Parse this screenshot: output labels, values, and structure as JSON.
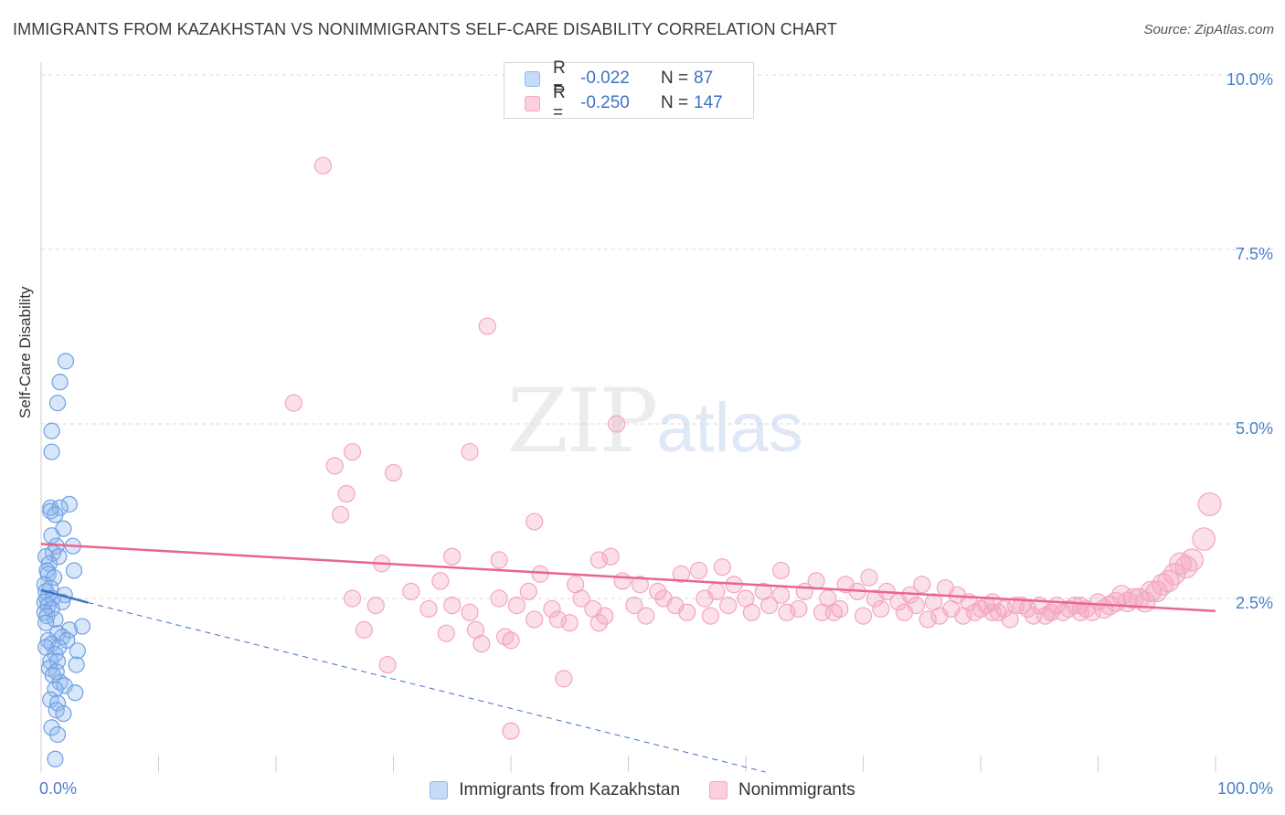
{
  "title": "IMMIGRANTS FROM KAZAKHSTAN VS NONIMMIGRANTS SELF-CARE DISABILITY CORRELATION CHART",
  "source": "Source: ZipAtlas.com",
  "watermark": {
    "zip": "ZIP",
    "atlas": "atlas"
  },
  "colors": {
    "blue": "#8fb8ee",
    "blue_line": "#3d72c4",
    "pink": "#f3a6bf",
    "pink_line": "#e8668e",
    "axis_text": "#4a7fc8",
    "grid": "#d9d9d9"
  },
  "legend_top": [
    {
      "r_label": "R =",
      "r": "-0.022",
      "n_label": "N =",
      "n": "87",
      "color": "blue"
    },
    {
      "r_label": "R =",
      "r": "-0.250",
      "n_label": "N =",
      "n": "147",
      "color": "pink"
    }
  ],
  "legend_bottom": [
    {
      "label": "Immigrants from Kazakhstan",
      "color": "blue"
    },
    {
      "label": "Nonimmigrants",
      "color": "pink"
    }
  ],
  "chart_data": {
    "type": "scatter",
    "title": "IMMIGRANTS FROM KAZAKHSTAN VS NONIMMIGRANTS SELF-CARE DISABILITY CORRELATION CHART",
    "xlabel": "",
    "ylabel": "Self-Care Disability",
    "xlim": [
      0,
      100
    ],
    "ylim": [
      0,
      10.5
    ],
    "x_tick_labels": [
      {
        "value": 0,
        "label": "0.0%"
      },
      {
        "value": 100,
        "label": "100.0%"
      }
    ],
    "x_minor_ticks": [
      0,
      10,
      20,
      30,
      40,
      50,
      60,
      70,
      80,
      90,
      100
    ],
    "y_tick_labels": [
      {
        "value": 2.5,
        "label": "2.5%"
      },
      {
        "value": 5.0,
        "label": "5.0%"
      },
      {
        "value": 7.5,
        "label": "7.5%"
      },
      {
        "value": 10.0,
        "label": "10.0%"
      }
    ],
    "series": [
      {
        "name": "Immigrants from Kazakhstan",
        "color": "blue",
        "trend": {
          "x": [
            0,
            4
          ],
          "y": [
            2.62,
            2.44
          ]
        },
        "trend_extended": {
          "x": [
            4,
            100
          ],
          "y": [
            2.44,
            -1.6
          ]
        },
        "points": [
          [
            2.1,
            5.9
          ],
          [
            1.6,
            5.6
          ],
          [
            1.4,
            5.3
          ],
          [
            0.9,
            4.9
          ],
          [
            0.9,
            4.6
          ],
          [
            2.4,
            3.85
          ],
          [
            0.8,
            3.8
          ],
          [
            1.6,
            3.8
          ],
          [
            0.8,
            3.75
          ],
          [
            1.2,
            3.7
          ],
          [
            1.9,
            3.5
          ],
          [
            0.9,
            3.4
          ],
          [
            1.3,
            3.25
          ],
          [
            2.7,
            3.25
          ],
          [
            1.0,
            3.15
          ],
          [
            0.4,
            3.1
          ],
          [
            1.5,
            3.1
          ],
          [
            0.7,
            3.0
          ],
          [
            0.5,
            2.9
          ],
          [
            2.8,
            2.9
          ],
          [
            0.6,
            2.85
          ],
          [
            1.1,
            2.8
          ],
          [
            0.3,
            2.7
          ],
          [
            0.8,
            2.65
          ],
          [
            0.4,
            2.6
          ],
          [
            2.0,
            2.55
          ],
          [
            0.5,
            2.5
          ],
          [
            1.0,
            2.5
          ],
          [
            0.3,
            2.45
          ],
          [
            1.8,
            2.45
          ],
          [
            0.6,
            2.4
          ],
          [
            0.9,
            2.35
          ],
          [
            0.3,
            2.3
          ],
          [
            0.5,
            2.25
          ],
          [
            1.2,
            2.2
          ],
          [
            0.4,
            2.15
          ],
          [
            3.5,
            2.1
          ],
          [
            2.4,
            2.05
          ],
          [
            1.4,
            2.0
          ],
          [
            1.8,
            1.95
          ],
          [
            0.6,
            1.9
          ],
          [
            2.2,
            1.9
          ],
          [
            0.9,
            1.85
          ],
          [
            1.5,
            1.8
          ],
          [
            0.4,
            1.8
          ],
          [
            3.1,
            1.75
          ],
          [
            1.2,
            1.7
          ],
          [
            0.8,
            1.6
          ],
          [
            1.4,
            1.6
          ],
          [
            3.0,
            1.55
          ],
          [
            0.7,
            1.5
          ],
          [
            1.3,
            1.45
          ],
          [
            1.0,
            1.4
          ],
          [
            1.6,
            1.3
          ],
          [
            2.0,
            1.25
          ],
          [
            1.2,
            1.2
          ],
          [
            2.9,
            1.15
          ],
          [
            0.8,
            1.05
          ],
          [
            1.4,
            1.0
          ],
          [
            1.3,
            0.9
          ],
          [
            1.9,
            0.85
          ],
          [
            0.9,
            0.65
          ],
          [
            1.4,
            0.55
          ],
          [
            1.2,
            0.2
          ]
        ]
      },
      {
        "name": "Nonimmigrants",
        "color": "pink",
        "trend": {
          "x": [
            0,
            100
          ],
          "y": [
            3.28,
            2.32
          ]
        },
        "points": [
          [
            24.0,
            8.7
          ],
          [
            38.0,
            6.4
          ],
          [
            21.5,
            5.3
          ],
          [
            49.0,
            5.0
          ],
          [
            26.5,
            4.6
          ],
          [
            36.5,
            4.6
          ],
          [
            25.0,
            4.4
          ],
          [
            30.0,
            4.3
          ],
          [
            26.0,
            4.0
          ],
          [
            25.5,
            3.7
          ],
          [
            42.0,
            3.6
          ],
          [
            35.0,
            3.1
          ],
          [
            48.5,
            3.1
          ],
          [
            39.0,
            3.05
          ],
          [
            47.5,
            3.05
          ],
          [
            29.0,
            3.0
          ],
          [
            58.0,
            2.95
          ],
          [
            42.5,
            2.85
          ],
          [
            54.5,
            2.85
          ],
          [
            56.0,
            2.9
          ],
          [
            63.0,
            2.9
          ],
          [
            70.5,
            2.8
          ],
          [
            34.0,
            2.75
          ],
          [
            45.5,
            2.7
          ],
          [
            49.5,
            2.75
          ],
          [
            51.0,
            2.7
          ],
          [
            59.0,
            2.7
          ],
          [
            66.0,
            2.75
          ],
          [
            68.5,
            2.7
          ],
          [
            75.0,
            2.7
          ],
          [
            77.0,
            2.65
          ],
          [
            31.5,
            2.6
          ],
          [
            41.5,
            2.6
          ],
          [
            52.5,
            2.6
          ],
          [
            57.5,
            2.6
          ],
          [
            61.5,
            2.6
          ],
          [
            65.0,
            2.6
          ],
          [
            69.5,
            2.6
          ],
          [
            72.0,
            2.6
          ],
          [
            74.0,
            2.55
          ],
          [
            78.0,
            2.55
          ],
          [
            26.5,
            2.5
          ],
          [
            39.0,
            2.5
          ],
          [
            46.0,
            2.5
          ],
          [
            53.0,
            2.5
          ],
          [
            56.5,
            2.5
          ],
          [
            60.0,
            2.5
          ],
          [
            63.0,
            2.55
          ],
          [
            67.0,
            2.5
          ],
          [
            71.0,
            2.5
          ],
          [
            73.0,
            2.45
          ],
          [
            76.0,
            2.45
          ],
          [
            79.0,
            2.45
          ],
          [
            81.0,
            2.45
          ],
          [
            83.0,
            2.4
          ],
          [
            85.0,
            2.4
          ],
          [
            86.5,
            2.4
          ],
          [
            88.0,
            2.4
          ],
          [
            90.0,
            2.45
          ],
          [
            91.5,
            2.45
          ],
          [
            93.0,
            2.5
          ],
          [
            95.0,
            2.6
          ],
          [
            28.5,
            2.4
          ],
          [
            33.0,
            2.35
          ],
          [
            35.0,
            2.4
          ],
          [
            40.5,
            2.4
          ],
          [
            43.5,
            2.35
          ],
          [
            47.0,
            2.35
          ],
          [
            50.5,
            2.4
          ],
          [
            54.0,
            2.4
          ],
          [
            58.5,
            2.4
          ],
          [
            62.0,
            2.4
          ],
          [
            64.5,
            2.35
          ],
          [
            68.0,
            2.35
          ],
          [
            71.5,
            2.35
          ],
          [
            74.5,
            2.4
          ],
          [
            77.5,
            2.35
          ],
          [
            80.0,
            2.35
          ],
          [
            82.0,
            2.35
          ],
          [
            84.0,
            2.35
          ],
          [
            86.0,
            2.3
          ],
          [
            87.5,
            2.35
          ],
          [
            89.0,
            2.35
          ],
          [
            91.0,
            2.4
          ],
          [
            92.5,
            2.45
          ],
          [
            94.0,
            2.45
          ],
          [
            36.5,
            2.3
          ],
          [
            44.0,
            2.2
          ],
          [
            48.0,
            2.25
          ],
          [
            55.0,
            2.3
          ],
          [
            60.5,
            2.3
          ],
          [
            66.5,
            2.3
          ],
          [
            70.0,
            2.25
          ],
          [
            73.5,
            2.3
          ],
          [
            76.5,
            2.25
          ],
          [
            79.5,
            2.3
          ],
          [
            81.5,
            2.3
          ],
          [
            84.5,
            2.25
          ],
          [
            87.0,
            2.3
          ],
          [
            88.5,
            2.3
          ],
          [
            90.5,
            2.35
          ],
          [
            42.0,
            2.2
          ],
          [
            45.0,
            2.15
          ],
          [
            47.5,
            2.15
          ],
          [
            51.5,
            2.25
          ],
          [
            57.0,
            2.25
          ],
          [
            63.5,
            2.3
          ],
          [
            67.5,
            2.3
          ],
          [
            75.5,
            2.2
          ],
          [
            78.5,
            2.25
          ],
          [
            82.5,
            2.2
          ],
          [
            85.5,
            2.25
          ],
          [
            89.5,
            2.3
          ],
          [
            27.5,
            2.05
          ],
          [
            34.5,
            2.0
          ],
          [
            37.0,
            2.05
          ],
          [
            39.5,
            1.95
          ],
          [
            37.5,
            1.85
          ],
          [
            40.0,
            1.9
          ],
          [
            29.5,
            1.55
          ],
          [
            44.5,
            1.35
          ],
          [
            40.0,
            0.6
          ],
          [
            95.5,
            2.7
          ],
          [
            96.5,
            2.85
          ],
          [
            97.0,
            3.0
          ],
          [
            98.0,
            3.05
          ],
          [
            99.0,
            3.35
          ],
          [
            99.5,
            3.85
          ],
          [
            94.5,
            2.6
          ],
          [
            97.5,
            2.95
          ],
          [
            96.0,
            2.75
          ],
          [
            92.0,
            2.55
          ],
          [
            93.5,
            2.5
          ],
          [
            88.5,
            2.4
          ],
          [
            86.0,
            2.3
          ],
          [
            83.5,
            2.4
          ],
          [
            80.5,
            2.4
          ],
          [
            81.0,
            2.3
          ]
        ]
      }
    ]
  }
}
